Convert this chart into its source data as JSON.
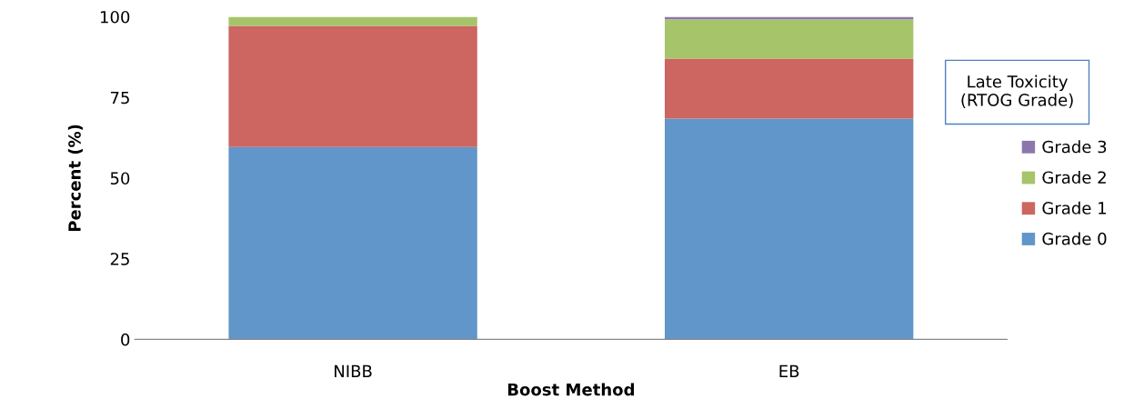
{
  "chart_data": {
    "type": "bar",
    "stacked": true,
    "xlabel": "Boost Method",
    "ylabel": "Percent (%)",
    "categories": [
      "NIBB",
      "EB"
    ],
    "series": [
      {
        "name": "Grade 0",
        "color": "#6096c9",
        "values": [
          59.6,
          68.4
        ]
      },
      {
        "name": "Grade 1",
        "color": "#cd6560",
        "values": [
          37.6,
          18.6
        ]
      },
      {
        "name": "Grade 2",
        "color": "#a6c46a",
        "values": [
          2.8,
          12.2
        ]
      },
      {
        "name": "Grade 3",
        "color": "#8c76ae",
        "values": [
          0,
          0.8
        ]
      }
    ],
    "ylim": [
      0,
      100
    ],
    "yticks": [
      0,
      25,
      50,
      75,
      100
    ],
    "grid": false,
    "legend": "right",
    "legend_title": "Late Toxicity\n(RTOG Grade)"
  }
}
